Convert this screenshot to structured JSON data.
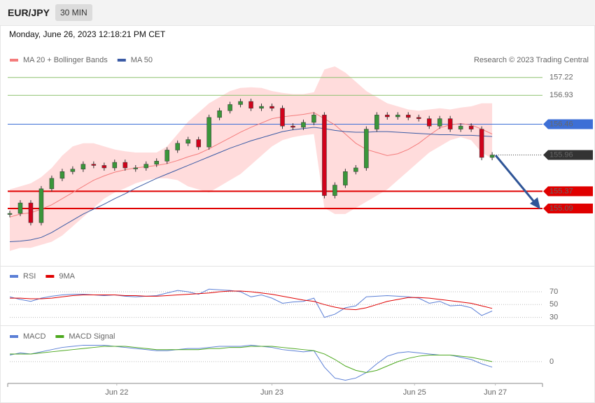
{
  "header": {
    "symbol": "EUR/JPY",
    "interval": "30 MIN",
    "datetime": "Monday, June 26, 2023 12:18:21 PM CET"
  },
  "chart_data": [
    {
      "type": "candlestick",
      "credit": "Research © 2023 Trading Central",
      "up_color": "#3a963a",
      "down_color": "#d0021b",
      "close": [
        155.01,
        155.18,
        154.86,
        155.41,
        155.58,
        155.69,
        155.73,
        155.81,
        155.79,
        155.75,
        155.84,
        155.75,
        155.75,
        155.81,
        155.86,
        156.04,
        156.15,
        156.21,
        156.09,
        156.57,
        156.68,
        156.78,
        156.83,
        156.72,
        156.75,
        156.72,
        156.43,
        156.41,
        156.49,
        156.61,
        155.3,
        155.47,
        155.69,
        155.75,
        156.38,
        156.61,
        156.58,
        156.61,
        156.57,
        156.55,
        156.43,
        156.55,
        156.38,
        156.43,
        156.38,
        155.92,
        155.96
      ],
      "series": [
        {
          "name": "MA 20 + Bollinger Bands",
          "color": "#f47c7c",
          "band_color": "#ffdcdc",
          "values": [
            154.95,
            155.0,
            155.02,
            155.08,
            155.15,
            155.25,
            155.35,
            155.45,
            155.55,
            155.62,
            155.68,
            155.72,
            155.75,
            155.77,
            155.79,
            155.82,
            155.87,
            155.93,
            155.98,
            156.06,
            156.15,
            156.24,
            156.33,
            156.41,
            156.48,
            156.55,
            156.58,
            156.6,
            156.62,
            156.65,
            156.55,
            156.45,
            156.3,
            156.15,
            156.05,
            156.0,
            155.95,
            155.98,
            156.05,
            156.15,
            156.28,
            156.4,
            156.45,
            156.47,
            156.45,
            156.38,
            156.3
          ],
          "upper": [
            155.4,
            155.45,
            155.5,
            155.6,
            155.75,
            155.95,
            156.1,
            156.15,
            156.15,
            156.1,
            156.05,
            156.02,
            156.0,
            156.0,
            156.0,
            156.1,
            156.3,
            156.5,
            156.65,
            156.8,
            156.9,
            157.0,
            157.05,
            157.06,
            157.05,
            157.0,
            156.97,
            156.95,
            156.95,
            156.98,
            157.35,
            157.4,
            157.3,
            157.15,
            157.0,
            156.9,
            156.8,
            156.75,
            156.7,
            156.68,
            156.7,
            156.72,
            156.7,
            156.73,
            156.75,
            156.8,
            156.8
          ],
          "lower": [
            154.4,
            154.45,
            154.45,
            154.5,
            154.55,
            154.65,
            154.8,
            154.95,
            155.1,
            155.25,
            155.35,
            155.42,
            155.5,
            155.55,
            155.58,
            155.58,
            155.55,
            155.45,
            155.4,
            155.35,
            155.45,
            155.55,
            155.65,
            155.8,
            155.95,
            156.1,
            156.2,
            156.25,
            156.28,
            156.3,
            155.1,
            155.0,
            155.0,
            155.1,
            155.2,
            155.3,
            155.4,
            155.55,
            155.7,
            155.85,
            156.0,
            156.1,
            156.2,
            156.25,
            156.2,
            156.0,
            155.9
          ]
        },
        {
          "name": "MA 50",
          "color": "#3b5ba5",
          "values": [
            154.55,
            154.56,
            154.58,
            154.62,
            154.7,
            154.8,
            154.9,
            155.0,
            155.08,
            155.16,
            155.25,
            155.33,
            155.42,
            155.5,
            155.58,
            155.65,
            155.72,
            155.79,
            155.86,
            155.93,
            156.0,
            156.07,
            156.13,
            156.19,
            156.24,
            156.29,
            156.34,
            156.37,
            156.39,
            156.41,
            156.39,
            156.36,
            156.34,
            156.33,
            156.33,
            156.34,
            156.34,
            156.33,
            156.32,
            156.31,
            156.3,
            156.29,
            156.29,
            156.28,
            156.28,
            156.27,
            156.26
          ]
        }
      ],
      "levels": [
        {
          "value": 157.22,
          "color": "#8dc26f",
          "line": "solid",
          "label": "text"
        },
        {
          "value": 156.93,
          "color": "#8dc26f",
          "line": "solid",
          "label": "text"
        },
        {
          "value": 156.46,
          "color": "#3d6fd6",
          "line": "solid",
          "label": "box"
        },
        {
          "value": 155.96,
          "color": "#333333",
          "line": "dotted",
          "label": "box"
        },
        {
          "value": 155.37,
          "color": "#e00000",
          "line": "solid",
          "label": "box"
        },
        {
          "value": 155.09,
          "color": "#e00000",
          "line": "solid",
          "label": "box"
        }
      ],
      "xlim": [
        0,
        50.8
      ],
      "ylim": [
        154.18,
        158.07
      ]
    },
    {
      "type": "line",
      "series": [
        {
          "name": "RSI",
          "color": "#5b7fd6",
          "values": [
            62,
            58,
            55,
            60,
            63,
            65,
            66,
            66,
            65,
            64,
            65,
            63,
            62,
            63,
            64,
            68,
            72,
            70,
            66,
            74,
            73,
            72,
            70,
            62,
            65,
            60,
            52,
            54,
            55,
            60,
            30,
            35,
            45,
            48,
            62,
            63,
            64,
            63,
            62,
            60,
            52,
            55,
            48,
            49,
            45,
            33,
            40
          ]
        },
        {
          "name": "9MA",
          "color": "#e00000",
          "values": [
            60,
            60,
            59,
            59,
            60,
            62,
            64,
            65,
            65,
            65,
            65,
            64,
            64,
            63,
            63,
            64,
            65,
            66,
            67,
            68,
            70,
            71,
            71,
            70,
            68,
            66,
            63,
            60,
            57,
            55,
            50,
            46,
            43,
            42,
            45,
            50,
            55,
            58,
            61,
            61,
            60,
            58,
            56,
            54,
            52,
            48,
            44
          ]
        }
      ],
      "xlim": [
        0,
        50.8
      ],
      "ylim": [
        22,
        107
      ],
      "yticks": [
        30,
        50,
        70
      ],
      "grid": "dotted"
    },
    {
      "type": "line",
      "series": [
        {
          "name": "MACD",
          "color": "#5b7fd6",
          "values": [
            0.06,
            0.08,
            0.07,
            0.09,
            0.11,
            0.13,
            0.14,
            0.15,
            0.15,
            0.15,
            0.14,
            0.13,
            0.12,
            0.11,
            0.1,
            0.1,
            0.11,
            0.12,
            0.12,
            0.13,
            0.14,
            0.14,
            0.14,
            0.15,
            0.14,
            0.13,
            0.11,
            0.1,
            0.09,
            0.1,
            -0.05,
            -0.15,
            -0.17,
            -0.15,
            -0.1,
            -0.02,
            0.05,
            0.08,
            0.09,
            0.08,
            0.07,
            0.06,
            0.06,
            0.04,
            0.02,
            -0.02,
            -0.05
          ]
        },
        {
          "name": "MACD Signal",
          "color": "#4ca81e",
          "values": [
            0.07,
            0.07,
            0.07,
            0.08,
            0.09,
            0.1,
            0.11,
            0.12,
            0.13,
            0.14,
            0.14,
            0.14,
            0.13,
            0.12,
            0.11,
            0.11,
            0.11,
            0.11,
            0.11,
            0.12,
            0.12,
            0.13,
            0.13,
            0.14,
            0.14,
            0.14,
            0.13,
            0.12,
            0.11,
            0.1,
            0.07,
            0.02,
            -0.04,
            -0.08,
            -0.1,
            -0.08,
            -0.04,
            0.0,
            0.03,
            0.05,
            0.06,
            0.06,
            0.06,
            0.05,
            0.04,
            0.02,
            0.0
          ]
        }
      ],
      "xlim": [
        0,
        50.8
      ],
      "ylim": [
        -0.18,
        0.3
      ],
      "yticks": [
        0
      ],
      "grid": "dotted",
      "xticks": [
        {
          "value": 10.2,
          "label": "Jun 22"
        },
        {
          "value": 25.0,
          "label": "Jun 23"
        },
        {
          "value": 38.6,
          "label": "Jun 25"
        },
        {
          "value": 46.3,
          "label": "Jun 27"
        }
      ]
    }
  ]
}
